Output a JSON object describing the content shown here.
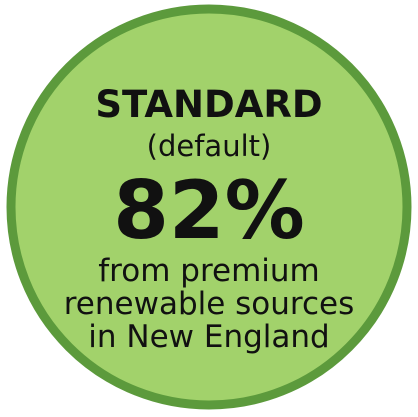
{
  "badge": {
    "title": "STANDARD",
    "subtitle": "(default)",
    "figure": "82%",
    "lines": [
      "from premium",
      "renewable sources",
      "in New England"
    ]
  }
}
